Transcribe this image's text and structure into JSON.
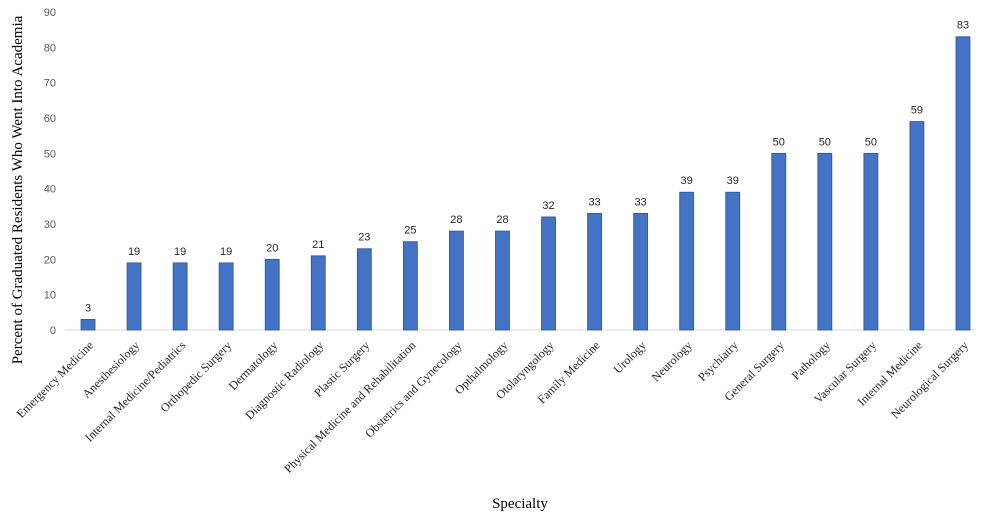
{
  "chart_data": {
    "type": "bar",
    "title": "",
    "xlabel": "Specialty",
    "ylabel": "Percent of Graduated Residents Who Went Into Academia",
    "ylim": [
      0,
      90
    ],
    "yticks": [
      0,
      10,
      20,
      30,
      40,
      50,
      60,
      70,
      80,
      90
    ],
    "grid": false,
    "legend": "none",
    "bar_color": "#4472C4",
    "bar_edge_color": "#2F5597",
    "categories": [
      "Emergency Medicine",
      "Anesthesiology",
      "Internal Medicine/Pediatrics",
      "Orthopedic Surgery",
      "Dermatology",
      "Diagnostic Radiology",
      "Plastic Surgery",
      "Physical Medicine and Rehabilitation",
      "Obstetrics and Gynecology",
      "Opthalmology",
      "Otolaryngology",
      "Family Medicine",
      "Urology",
      "Neurology",
      "Psychiatry",
      "General Surgery",
      "Pathology",
      "Vascular Surgery",
      "Internal Medicine",
      "Neurological Surgery"
    ],
    "values": [
      3,
      19,
      19,
      19,
      20,
      21,
      23,
      25,
      28,
      28,
      32,
      33,
      33,
      39,
      39,
      50,
      50,
      50,
      59,
      83
    ]
  }
}
